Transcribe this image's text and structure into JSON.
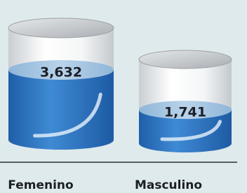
{
  "chart_data": {
    "type": "bar",
    "categories": [
      "Femenino",
      "Masculino"
    ],
    "values": [
      3632,
      1741
    ],
    "value_labels": [
      "3,632",
      "1,741"
    ],
    "color": "#2f78c4"
  }
}
